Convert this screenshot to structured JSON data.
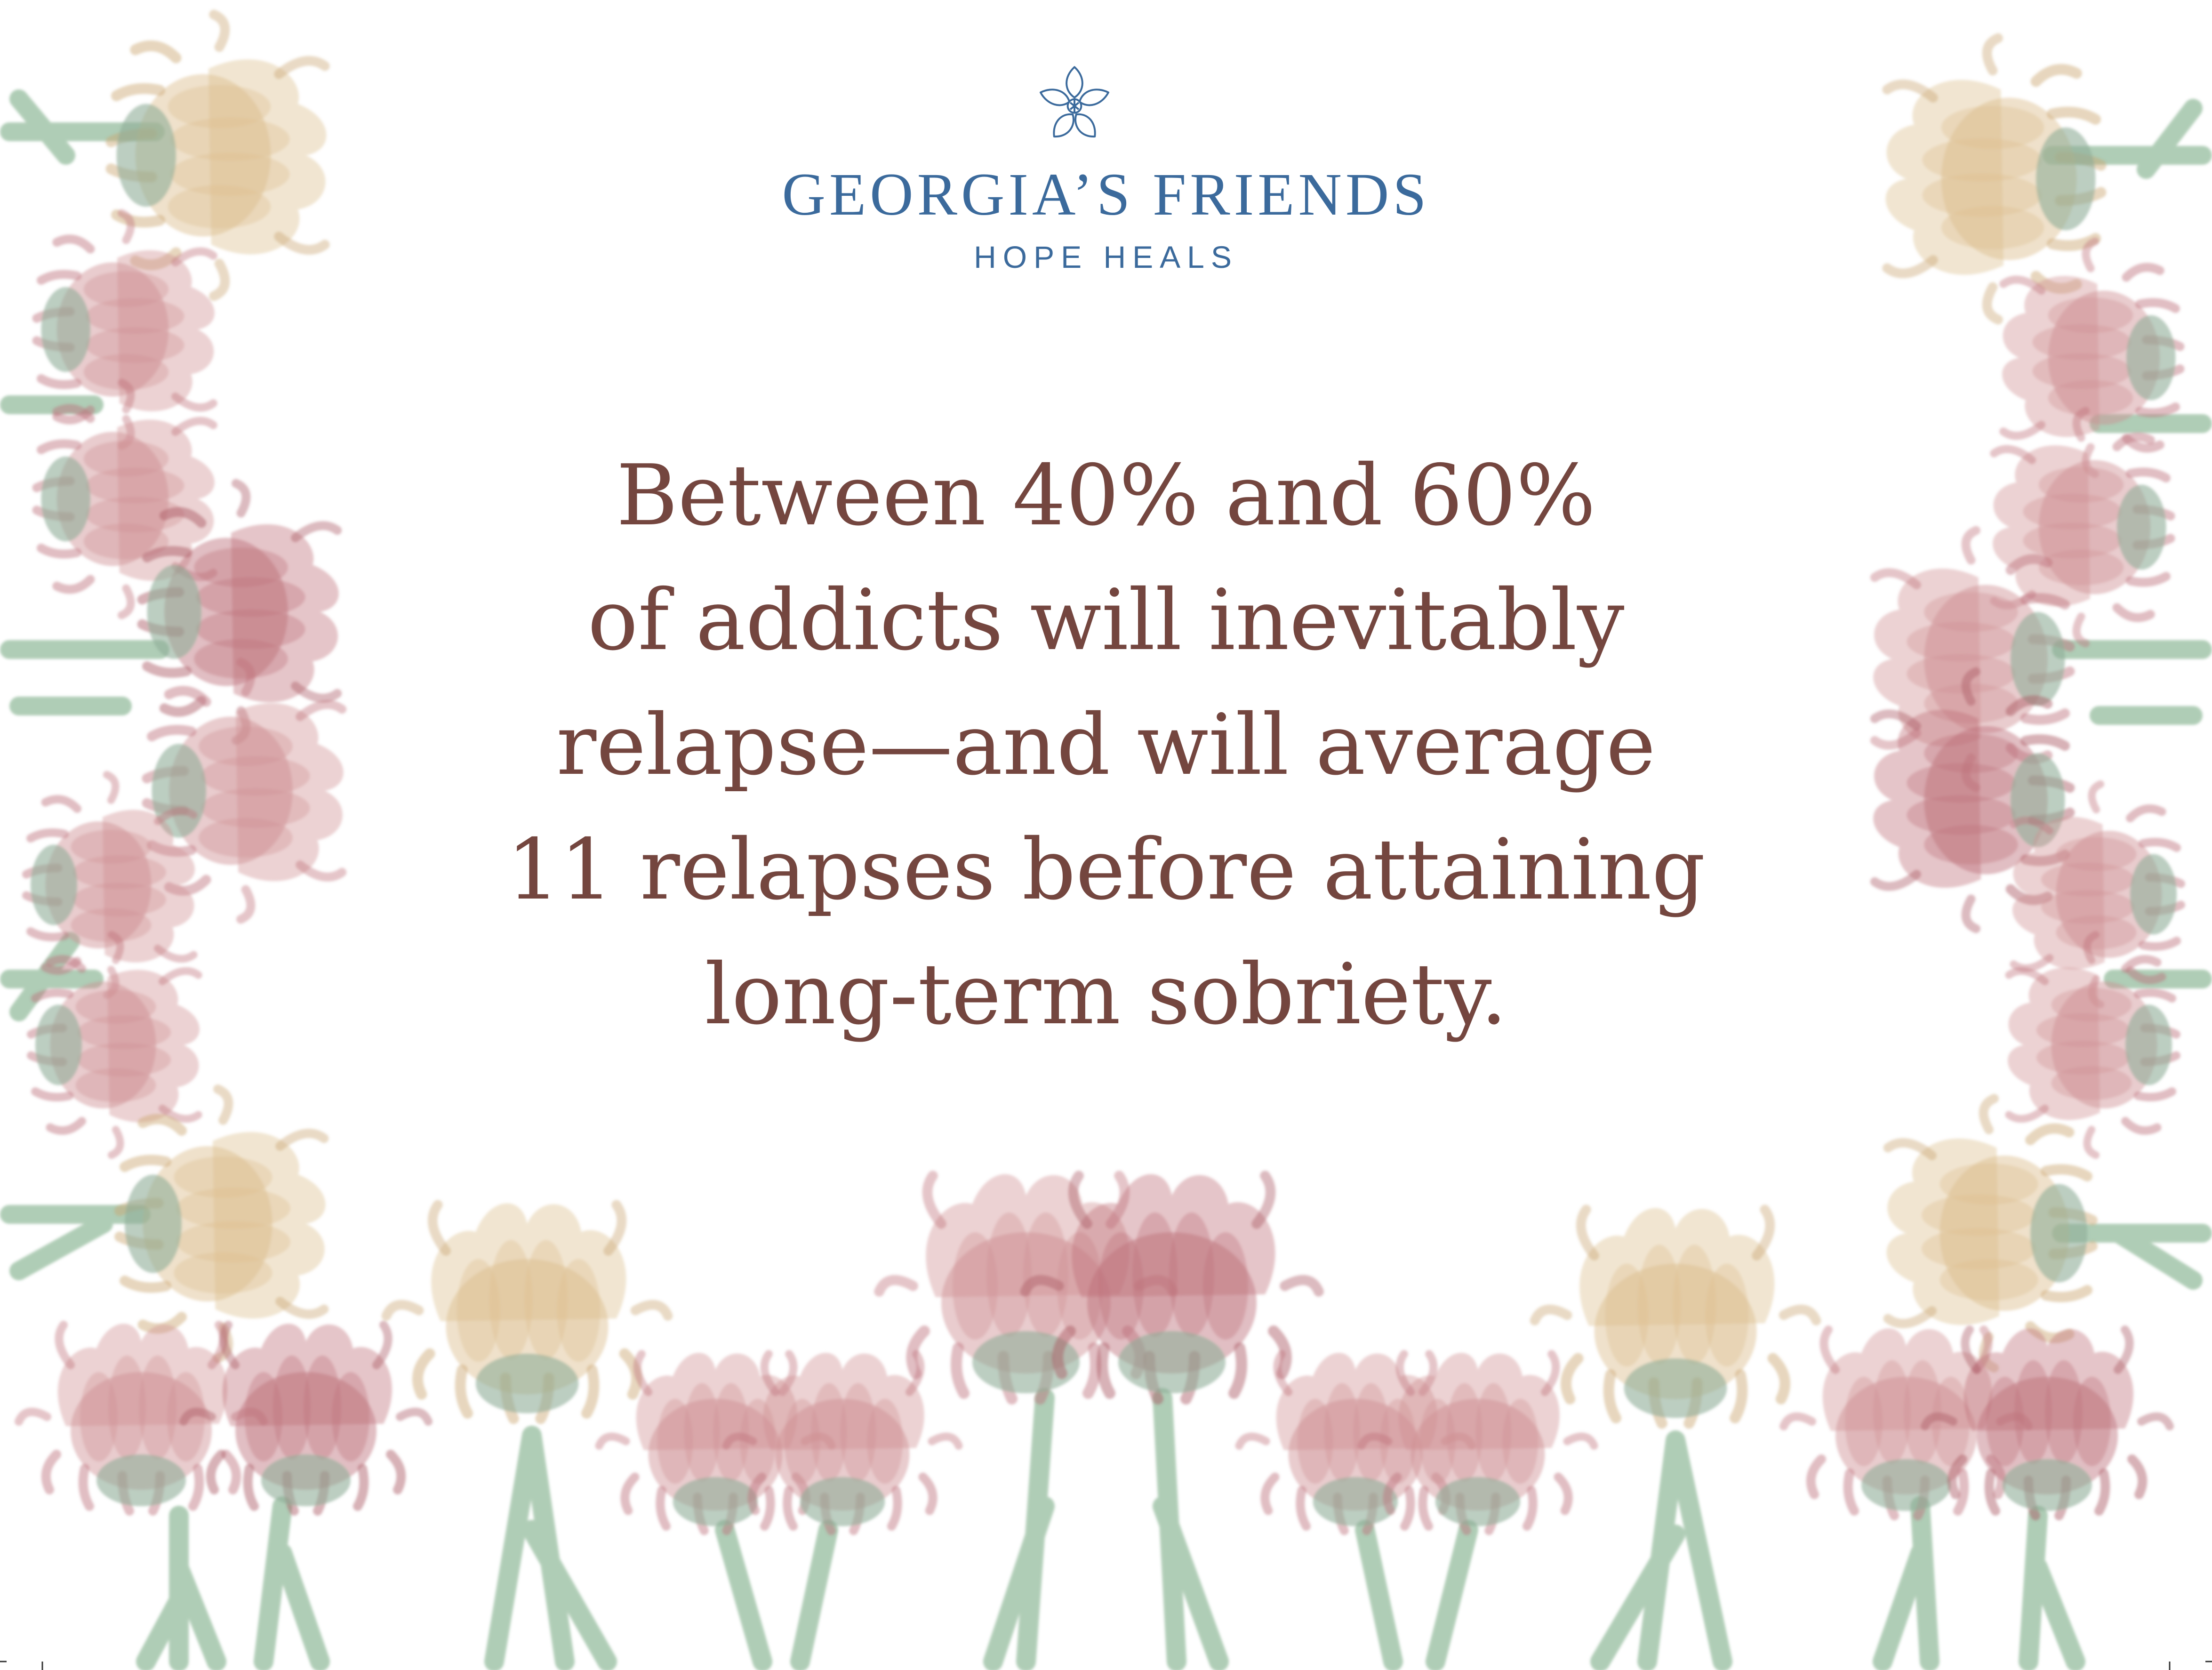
{
  "logo": {
    "mark_icon": "magnolia-flower-icon",
    "title": "GEORGIA’S FRIENDS",
    "tagline": "HOPE HEALS"
  },
  "quote": {
    "lines": [
      "Between 40% and 60%",
      "of addicts will inevitably",
      "relapse—and will average",
      "11 relapses before attaining",
      "long-term sobriety."
    ]
  },
  "colors": {
    "background": "#ffffff",
    "brand_blue": "#3b6a9c",
    "quote_text": "#74463f",
    "petal_pink": "#cf8f92",
    "petal_rose": "#bd6f79",
    "petal_gold": "#dcbd8c",
    "flower_center": "#8fae98",
    "stem_green": "#9cc1a4"
  },
  "decoration": {
    "style": "watercolor-flower-border",
    "icons": [
      "flower-icon",
      "stem-icon"
    ]
  }
}
